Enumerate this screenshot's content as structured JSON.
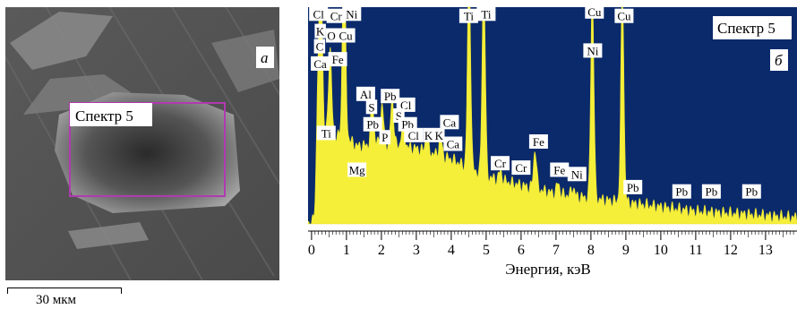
{
  "sem_panel": {
    "letter": "а",
    "spectrum_label": "Спектр 5",
    "scale_text": "30 мкм"
  },
  "edx_panel": {
    "letter": "б",
    "spectrum_label": "Спектр 5"
  },
  "chart_data": {
    "type": "line",
    "title": "",
    "xlabel": "Энергия, кэВ",
    "ylabel": "",
    "xlim": [
      -0.1,
      13.9
    ],
    "ylim": [
      0,
      1.0
    ],
    "x_ticks": [
      0,
      1,
      2,
      3,
      4,
      5,
      6,
      7,
      8,
      9,
      10,
      11,
      12,
      13
    ],
    "background": "#0a2a6b",
    "fill_color": "#f5ef3a",
    "background_level": [
      {
        "x": 0.1,
        "y": 0.02
      },
      {
        "x": 0.4,
        "y": 0.42
      },
      {
        "x": 1.0,
        "y": 0.4
      },
      {
        "x": 1.3,
        "y": 0.36
      },
      {
        "x": 2.0,
        "y": 0.37
      },
      {
        "x": 3.0,
        "y": 0.35
      },
      {
        "x": 4.0,
        "y": 0.3
      },
      {
        "x": 5.0,
        "y": 0.22
      },
      {
        "x": 6.0,
        "y": 0.18
      },
      {
        "x": 7.0,
        "y": 0.14
      },
      {
        "x": 8.0,
        "y": 0.12
      },
      {
        "x": 9.0,
        "y": 0.1
      },
      {
        "x": 10.0,
        "y": 0.08
      },
      {
        "x": 11.0,
        "y": 0.06
      },
      {
        "x": 12.0,
        "y": 0.05
      },
      {
        "x": 13.0,
        "y": 0.04
      },
      {
        "x": 13.9,
        "y": 0.03
      }
    ],
    "peaks": [
      {
        "x": 0.18,
        "h": 0.5
      },
      {
        "x": 0.27,
        "h": 0.92
      },
      {
        "x": 0.53,
        "h": 0.4
      },
      {
        "x": 0.93,
        "h": 0.95
      },
      {
        "x": 1.74,
        "h": 0.2
      },
      {
        "x": 2.02,
        "h": 0.18
      },
      {
        "x": 2.31,
        "h": 0.22
      },
      {
        "x": 2.62,
        "h": 0.12
      },
      {
        "x": 3.3,
        "h": 0.07
      },
      {
        "x": 3.69,
        "h": 0.09
      },
      {
        "x": 4.51,
        "h": 0.96
      },
      {
        "x": 4.93,
        "h": 0.96
      },
      {
        "x": 5.41,
        "h": 0.04
      },
      {
        "x": 6.4,
        "h": 0.18
      },
      {
        "x": 7.06,
        "h": 0.05
      },
      {
        "x": 7.48,
        "h": 0.04
      },
      {
        "x": 8.04,
        "h": 0.99
      },
      {
        "x": 8.9,
        "h": 0.99
      }
    ],
    "peak_labels": [
      {
        "text": "Cl",
        "x": 0.2,
        "y": 0.97
      },
      {
        "text": "Cr",
        "x": 0.7,
        "y": 0.96
      },
      {
        "text": "Ni",
        "x": 1.15,
        "y": 0.97
      },
      {
        "text": "K",
        "x": 0.25,
        "y": 0.89
      },
      {
        "text": "O",
        "x": 0.57,
        "y": 0.87
      },
      {
        "text": "Cu",
        "x": 0.98,
        "y": 0.87
      },
      {
        "text": "C",
        "x": 0.23,
        "y": 0.82
      },
      {
        "text": "Fe",
        "x": 0.75,
        "y": 0.76
      },
      {
        "text": "Ca",
        "x": 0.25,
        "y": 0.74
      },
      {
        "text": "Al",
        "x": 1.55,
        "y": 0.6
      },
      {
        "text": "Pb",
        "x": 2.25,
        "y": 0.59
      },
      {
        "text": "S",
        "x": 1.72,
        "y": 0.54
      },
      {
        "text": "Cl",
        "x": 2.7,
        "y": 0.55
      },
      {
        "text": "S",
        "x": 2.5,
        "y": 0.5
      },
      {
        "text": "Pb",
        "x": 1.75,
        "y": 0.46
      },
      {
        "text": "Pb",
        "x": 2.75,
        "y": 0.46
      },
      {
        "text": "Ca",
        "x": 3.95,
        "y": 0.47
      },
      {
        "text": "P",
        "x": 2.1,
        "y": 0.4
      },
      {
        "text": "Cl",
        "x": 2.92,
        "y": 0.41
      },
      {
        "text": "K",
        "x": 3.35,
        "y": 0.41
      },
      {
        "text": "K",
        "x": 3.65,
        "y": 0.41
      },
      {
        "text": "Ti",
        "x": 0.42,
        "y": 0.42
      },
      {
        "text": "Ca",
        "x": 4.05,
        "y": 0.37
      },
      {
        "text": "Mg",
        "x": 1.3,
        "y": 0.25
      },
      {
        "text": "Ti",
        "x": 4.5,
        "y": 0.96
      },
      {
        "text": "Ti",
        "x": 5.0,
        "y": 0.97
      },
      {
        "text": "Cu",
        "x": 8.1,
        "y": 0.98
      },
      {
        "text": "Cu",
        "x": 8.95,
        "y": 0.96
      },
      {
        "text": "Ni",
        "x": 8.05,
        "y": 0.8
      },
      {
        "text": "Fe",
        "x": 6.5,
        "y": 0.38
      },
      {
        "text": "Cr",
        "x": 5.4,
        "y": 0.28
      },
      {
        "text": "Cr",
        "x": 6.0,
        "y": 0.26
      },
      {
        "text": "Fe",
        "x": 7.1,
        "y": 0.25
      },
      {
        "text": "Ni",
        "x": 7.6,
        "y": 0.23
      },
      {
        "text": "Pb",
        "x": 9.2,
        "y": 0.17
      },
      {
        "text": "Pb",
        "x": 10.6,
        "y": 0.15
      },
      {
        "text": "Pb",
        "x": 11.45,
        "y": 0.15
      },
      {
        "text": "Pb",
        "x": 12.6,
        "y": 0.15
      }
    ]
  }
}
